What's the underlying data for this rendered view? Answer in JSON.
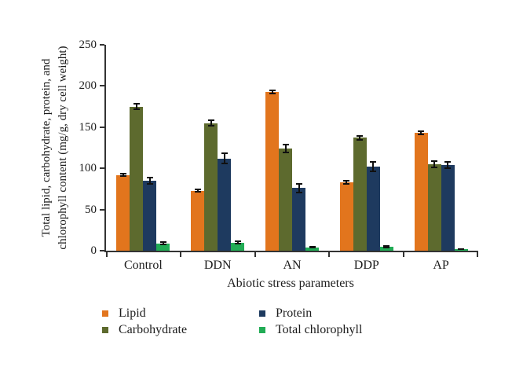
{
  "figure": {
    "background": "#ffffff",
    "text_color": "#1c1c1c",
    "axis_color": "#333333"
  },
  "chart_data": {
    "type": "bar",
    "title": "",
    "categories": [
      "Control",
      "DDN",
      "AN",
      "DDP",
      "AP"
    ],
    "series": [
      {
        "name": "Lipid",
        "color": "#e2751d",
        "values": [
          92,
          73,
          193,
          83,
          143
        ],
        "errors": [
          2,
          2,
          3,
          3,
          3
        ]
      },
      {
        "name": "Carbohydrate",
        "color": "#5d6a2e",
        "values": [
          175,
          155,
          124,
          137,
          105
        ],
        "errors": [
          4,
          4,
          6,
          3,
          5
        ]
      },
      {
        "name": "Protein",
        "color": "#1e3a5f",
        "values": [
          85,
          112,
          76,
          102,
          104
        ],
        "errors": [
          5,
          7,
          6,
          7,
          5
        ]
      },
      {
        "name": "Total chlorophyll",
        "color": "#21ac55",
        "values": [
          9,
          10,
          4,
          5,
          1.5
        ],
        "errors": [
          2,
          2,
          1.5,
          2,
          1
        ]
      }
    ],
    "xlabel": "Abiotic stress parameters",
    "ylabel": "Total lipid, carbohydrate, protein, and chlorophyll content (mg/g, dry cell weight)",
    "ylabel_lines": [
      "Total lipid, carbohydrate, protein, and",
      "chlorophyll content (mg/g, dry cell weight)"
    ],
    "ylim": [
      0,
      250
    ],
    "yticks": [
      0,
      50,
      100,
      150,
      200,
      250
    ],
    "grid": false,
    "legend_position": "bottom",
    "legend_column_order": [
      0,
      2,
      1,
      3
    ],
    "error_bar_color": "#101010"
  }
}
